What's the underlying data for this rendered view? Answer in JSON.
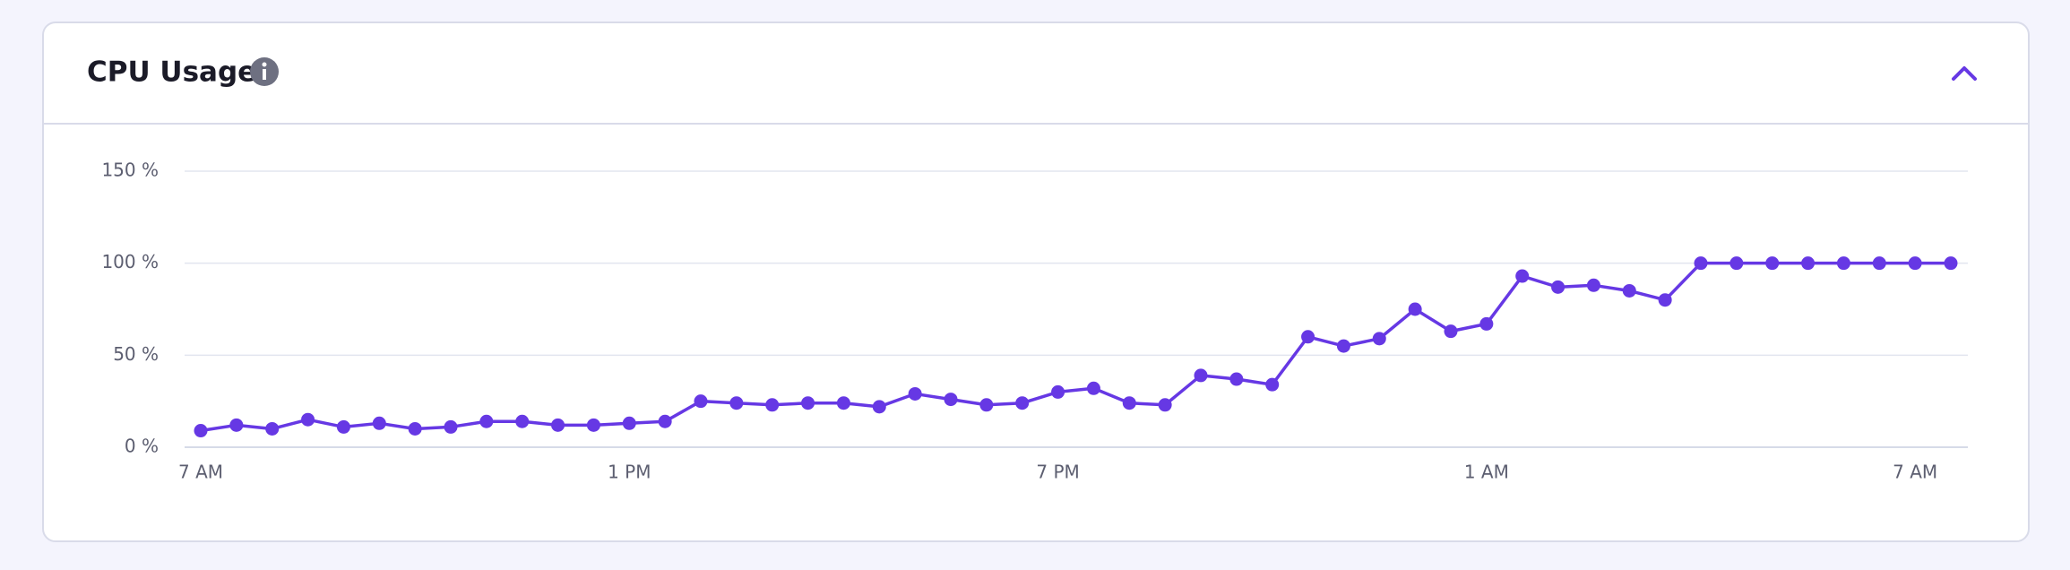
{
  "chart_data": {
    "type": "line",
    "title": "CPU Usage",
    "categories": [
      "7 AM",
      null,
      null,
      null,
      null,
      null,
      null,
      null,
      null,
      null,
      null,
      null,
      "1 PM",
      null,
      null,
      null,
      null,
      null,
      null,
      null,
      null,
      null,
      null,
      null,
      "7 PM",
      null,
      null,
      null,
      null,
      null,
      null,
      null,
      null,
      null,
      null,
      null,
      "1 AM",
      null,
      null,
      null,
      null,
      null,
      null,
      null,
      null,
      null,
      null,
      null,
      "7 AM",
      null
    ],
    "values": [
      9,
      12,
      10,
      15,
      11,
      13,
      10,
      11,
      14,
      14,
      12,
      12,
      13,
      14,
      25,
      24,
      23,
      24,
      24,
      22,
      29,
      26,
      23,
      24,
      30,
      32,
      24,
      23,
      39,
      37,
      34,
      60,
      55,
      59,
      75,
      63,
      67,
      93,
      87,
      88,
      85,
      80,
      100,
      100,
      100,
      100,
      100,
      100,
      100,
      100
    ],
    "color": "#6638e4",
    "ylim": [
      0,
      150
    ],
    "yticks": [
      {
        "value": 0,
        "label": "0 %"
      },
      {
        "value": 50,
        "label": "50 %"
      },
      {
        "value": 100,
        "label": "100 %"
      },
      {
        "value": 150,
        "label": "150 %"
      }
    ],
    "grid": true
  }
}
